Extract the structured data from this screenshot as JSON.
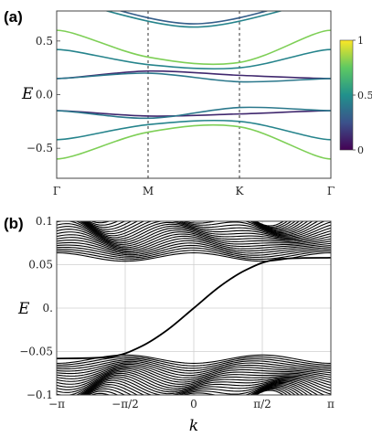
{
  "chart_data": [
    {
      "panel": "(a)",
      "type": "line",
      "ylabel": "E",
      "ylim": [
        -0.78,
        0.78
      ],
      "yticks": [
        -0.5,
        0.0,
        0.5
      ],
      "ytick_labels": [
        "−0.5",
        "0.0",
        "0.5"
      ],
      "x": [
        0,
        1,
        2,
        3
      ],
      "xtick_labels": [
        "Γ",
        "M",
        "K",
        "Γ"
      ],
      "vlines": [
        1,
        2
      ],
      "colormap": "viridis",
      "colorbar": {
        "ticks": [
          0,
          0.5,
          1
        ],
        "tick_labels": [
          "0",
          "0.5",
          "1"
        ]
      },
      "series": [
        {
          "values": [
            0.6,
            0.35,
            0.3,
            0.6
          ],
          "weight": 0.8
        },
        {
          "values": [
            0.42,
            0.28,
            0.25,
            0.42
          ],
          "weight": 0.45
        },
        {
          "values": [
            0.15,
            0.22,
            0.18,
            0.15
          ],
          "weight": 0.12
        },
        {
          "values": [
            0.15,
            0.2,
            0.12,
            0.15
          ],
          "weight": 0.4
        },
        {
          "values": [
            -0.15,
            -0.2,
            -0.18,
            -0.15
          ],
          "weight": 0.12
        },
        {
          "values": [
            -0.15,
            -0.22,
            -0.12,
            -0.15
          ],
          "weight": 0.4
        },
        {
          "values": [
            -0.42,
            -0.28,
            -0.25,
            -0.42
          ],
          "weight": 0.45
        },
        {
          "values": [
            -0.6,
            -0.35,
            -0.3,
            -0.6
          ],
          "weight": 0.8
        }
      ]
    },
    {
      "panel": "(b)",
      "type": "line",
      "xlabel": "k",
      "ylabel": "E",
      "xlim": [
        -3.14159,
        3.14159
      ],
      "ylim": [
        -0.1,
        0.1
      ],
      "xticks": [
        -3.14159,
        -1.5708,
        0,
        1.5708,
        3.14159
      ],
      "xtick_labels": [
        "−π",
        "−π/2",
        "0",
        "π/2",
        "π"
      ],
      "yticks": [
        -0.1,
        -0.05,
        0,
        0.05,
        0.1
      ],
      "ytick_labels": [
        "−0.1",
        "−0.05",
        "0.",
        "0.05",
        "0.1"
      ],
      "grid": true,
      "bulk_bands": {
        "count": 24,
        "gap_edge": 0.054,
        "modulation": 0.016
      },
      "edge_state": {
        "values": [
          -0.058,
          -0.056,
          -0.044,
          -0.025,
          0.0,
          0.025,
          0.044,
          0.056,
          0.058
        ],
        "k": [
          -3.14159,
          -1.9,
          -1.2,
          -0.6,
          0,
          0.6,
          1.2,
          1.9,
          3.14159
        ]
      }
    }
  ]
}
